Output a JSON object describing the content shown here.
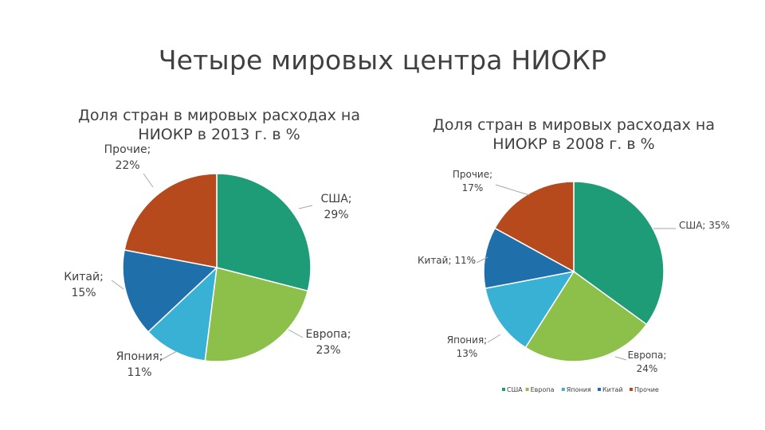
{
  "slide_title": "Четыре мировых центра НИОКР",
  "colors": {
    "США": "#1e9c78",
    "Европа": "#8cc04a",
    "Япония": "#39b1d4",
    "Китай": "#1f6fab",
    "Прочие": "#b74a1c",
    "leader": "#a6a6a6"
  },
  "chart_data": [
    {
      "type": "pie",
      "title": "Доля стран в мировых расходах на НИОКР в 2013 г. в %",
      "categories": [
        "США",
        "Европа",
        "Япония",
        "Китай",
        "Прочие"
      ],
      "values": [
        29,
        23,
        11,
        15,
        22
      ],
      "labels": [
        "США; 29%",
        "Европа; 23%",
        "Япония; 11%",
        "Китай; 15%",
        "Прочие; 22%"
      ],
      "legend": false
    },
    {
      "type": "pie",
      "title": "Доля стран в мировых расходах на НИОКР в 2008 г. в %",
      "categories": [
        "США",
        "Европа",
        "Япония",
        "Китай",
        "Прочие"
      ],
      "values": [
        35,
        24,
        13,
        11,
        17
      ],
      "labels": [
        "США; 35%",
        "Европа; 24%",
        "Япония; 13%",
        "Китай; 11%",
        "Прочие; 17%"
      ],
      "legend": true,
      "legend_placement": "bottom"
    }
  ]
}
